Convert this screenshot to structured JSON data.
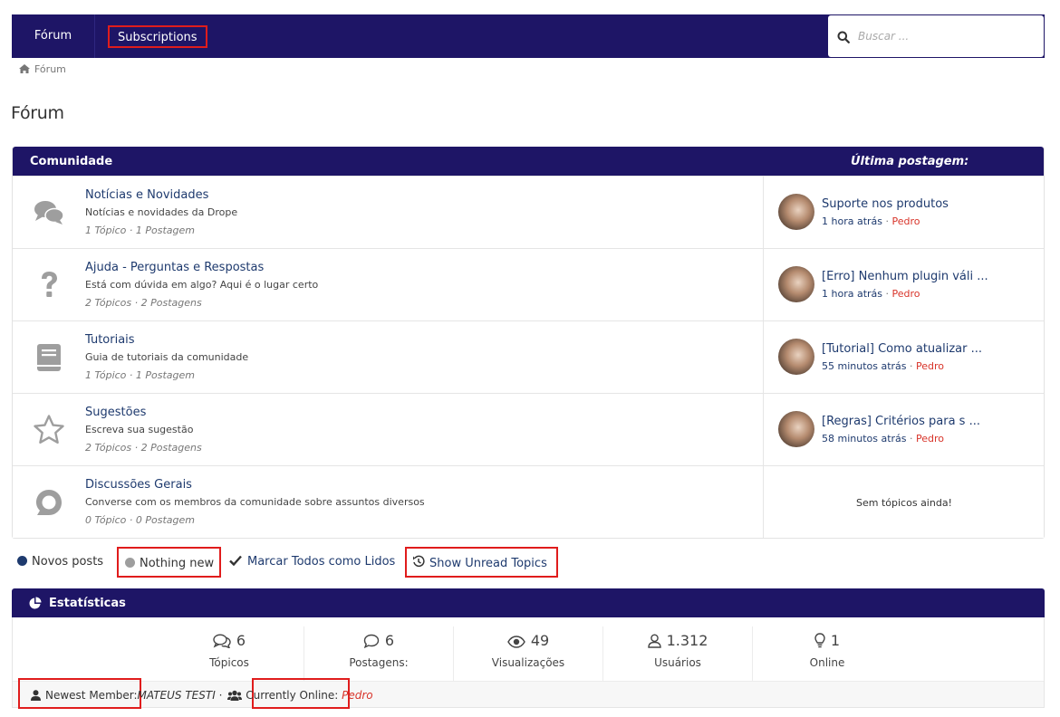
{
  "nav": {
    "forum_label": "Fórum",
    "subscriptions_label": "Subscriptions",
    "search_placeholder": "Buscar ..."
  },
  "breadcrumb": {
    "home_label": "Fórum"
  },
  "page_title": "Fórum",
  "table": {
    "header_community": "Comunidade",
    "header_last_post": "Última postagem:",
    "forums": [
      {
        "icon": "comments-icon",
        "title": "Notícias e Novidades",
        "description": "Notícias e novidades da Drope",
        "stats": "1 Tópico ·  1 Postagem",
        "last_title": "Suporte nos produtos",
        "last_time": "1 hora atrás",
        "last_user": "Pedro"
      },
      {
        "icon": "question-icon",
        "title": "Ajuda - Perguntas e Respostas",
        "description": "Está com dúvida em algo? Aqui é o lugar certo",
        "stats": "2 Tópicos · 2 Postagens",
        "last_title": "[Erro] Nenhum plugin váli ...",
        "last_time": "1 hora atrás",
        "last_user": "Pedro"
      },
      {
        "icon": "book-icon",
        "title": "Tutoriais",
        "description": "Guia de tutoriais da comunidade",
        "stats": "1 Tópico ·  1 Postagem",
        "last_title": "[Tutorial] Como atualizar ...",
        "last_time": "55 minutos atrás",
        "last_user": "Pedro"
      },
      {
        "icon": "star-icon",
        "title": "Sugestões",
        "description": "Escreva sua sugestão",
        "stats": "2 Tópicos · 2 Postagens",
        "last_title": "[Regras] Critérios para s ...",
        "last_time": "58 minutos atrás",
        "last_user": "Pedro"
      },
      {
        "icon": "chat-bubble-icon",
        "title": "Discussões Gerais",
        "description": "Converse com os membros da comunidade sobre assuntos diversos",
        "stats": "0 Tópico ·  0 Postagem",
        "empty_text": "Sem tópicos ainda!"
      }
    ]
  },
  "legend": {
    "new_posts": "Novos posts",
    "nothing_new": "Nothing new",
    "mark_all_read": "Marcar Todos como Lidos",
    "show_unread": "Show Unread Topics",
    "new_color": "#1e3a6e",
    "nothing_color": "#9e9e9e"
  },
  "stats": {
    "title": "Estatísticas",
    "items": [
      {
        "icon": "comments-outline-icon",
        "value": "6",
        "label": "Tópicos"
      },
      {
        "icon": "comment-outline-icon",
        "value": "6",
        "label": "Postagens:"
      },
      {
        "icon": "eye-icon",
        "value": "49",
        "label": "Visualizações"
      },
      {
        "icon": "user-icon",
        "value": "1.312",
        "label": "Usuários"
      },
      {
        "icon": "lightbulb-icon",
        "value": "1",
        "label": "Online"
      }
    ],
    "newest_member_label": "Newest Member:",
    "newest_member": "MATEUS TESTI",
    "separator": "·",
    "currently_online_label": "Currently Online:",
    "online_user": "Pedro"
  },
  "colors": {
    "brand": "#1e1566",
    "link": "#1e3a6e",
    "user": "#d8342a",
    "highlight_box": "#e01c1c"
  }
}
